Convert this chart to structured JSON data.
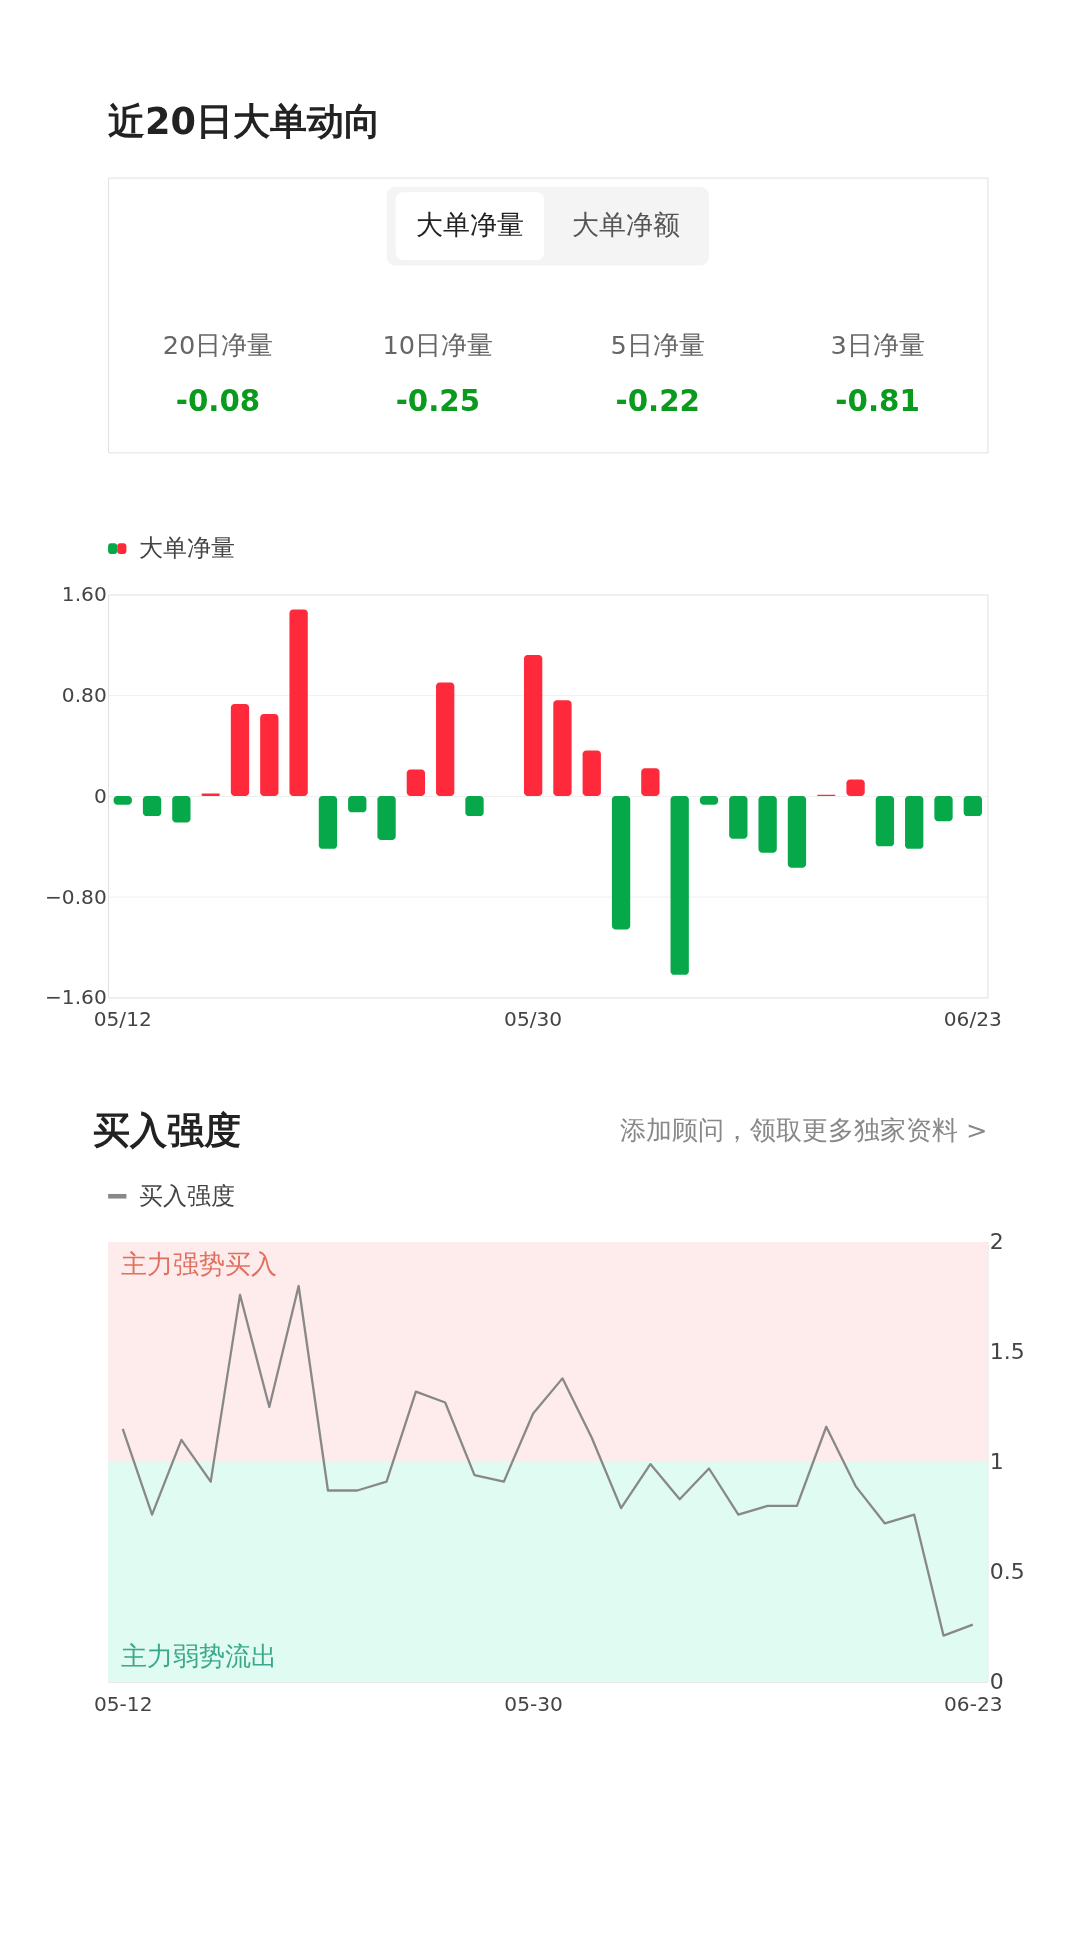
{
  "chart_data": [
    {
      "type": "other",
      "title": "近20日大单动向",
      "annotations": [
        "大单净量",
        "大单净额"
      ],
      "categories": [
        "20日净量",
        "10日净量",
        "5日净量",
        "3日净量"
      ],
      "values": [
        -0.08,
        -0.25,
        -0.22,
        -0.81
      ],
      "data_labels": true,
      "color": "#0a9b1e"
    },
    {
      "type": "bar",
      "categories": [
        "05/12",
        null,
        null,
        null,
        null,
        null,
        null,
        null,
        null,
        null,
        null,
        null,
        null,
        null,
        "05/30",
        null,
        null,
        null,
        null,
        null,
        null,
        null,
        null,
        null,
        null,
        null,
        null,
        null,
        null,
        "06/23"
      ],
      "series": [
        {
          "name": "大单净量",
          "values": [
            -0.07,
            -0.16,
            -0.21,
            0.02,
            0.73,
            0.65,
            1.48,
            -0.42,
            -0.13,
            -0.35,
            0.21,
            0.9,
            -0.16,
            0,
            1.12,
            0.76,
            0.36,
            -1.06,
            0.22,
            -1.42,
            -0.07,
            -0.34,
            -0.45,
            -0.57,
            0.01,
            0.13,
            -0.4,
            -0.42,
            -0.2,
            -0.16
          ],
          "colors": [
            "#07a84a",
            "#07a84a",
            "#07a84a",
            "#fe2a3b",
            "#fe2a3b",
            "#fe2a3b",
            "#fe2a3b",
            "#07a84a",
            "#07a84a",
            "#07a84a",
            "#fe2a3b",
            "#fe2a3b",
            "#07a84a",
            "#bbbbbb",
            "#fe2a3b",
            "#fe2a3b",
            "#fe2a3b",
            "#07a84a",
            "#fe2a3b",
            "#07a84a",
            "#07a84a",
            "#07a84a",
            "#07a84a",
            "#07a84a",
            "#fe2a3b",
            "#fe2a3b",
            "#07a84a",
            "#07a84a",
            "#07a84a",
            "#07a84a"
          ]
        }
      ],
      "ylim": [
        -1.6,
        1.6
      ],
      "yticks": [
        {
          "value": 1.6,
          "label": "1.60"
        },
        {
          "value": 0.8,
          "label": "0.80"
        },
        0,
        {
          "value": -0.8,
          "label": "−0.80"
        },
        {
          "value": -1.6,
          "label": "−1.60"
        }
      ],
      "grid": "y",
      "legend": "top left"
    },
    {
      "type": "line",
      "title": "买入强度",
      "annotations": [
        "添加顾问，领取更多独家资料 >"
      ],
      "categories": [
        "05-12",
        null,
        null,
        null,
        null,
        null,
        null,
        null,
        null,
        null,
        null,
        null,
        null,
        null,
        "05-30",
        null,
        null,
        null,
        null,
        null,
        null,
        null,
        null,
        null,
        null,
        null,
        null,
        null,
        null,
        "06-23"
      ],
      "series": [
        {
          "name": "买入强度",
          "color": "#888888",
          "values": [
            1.15,
            0.76,
            1.1,
            0.91,
            1.76,
            1.25,
            1.8,
            0.87,
            0.87,
            0.91,
            1.32,
            1.27,
            0.94,
            0.91,
            1.22,
            1.38,
            1.11,
            0.79,
            0.99,
            0.83,
            0.97,
            0.76,
            0.8,
            0.8,
            1.16,
            0.89,
            0.72,
            0.76,
            0.21,
            0.26
          ]
        }
      ],
      "ylim": [
        0,
        2
      ],
      "yticks": [
        0,
        0.5,
        1,
        1.5,
        2
      ],
      "bands": [
        {
          "axis": "y",
          "from": 1,
          "to": 2,
          "label": "主力强势买入",
          "color": "#fdeceb"
        },
        {
          "axis": "y",
          "from": 0,
          "to": 1,
          "label": "主力弱势流出",
          "color": "#e0fbf2"
        }
      ],
      "legend": "top left",
      "marker": "none",
      "line_style": "solid"
    }
  ]
}
